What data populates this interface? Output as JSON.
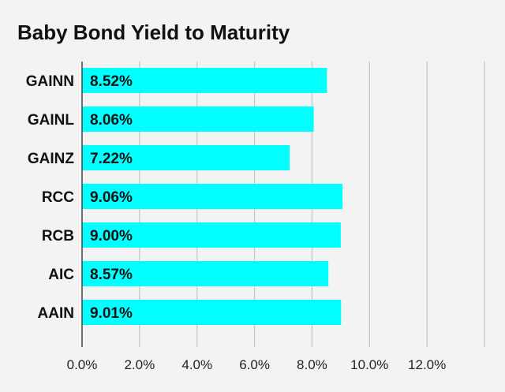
{
  "chart_data": {
    "type": "bar",
    "orientation": "horizontal",
    "title": "Baby Bond Yield to Maturity",
    "categories": [
      "GAINN",
      "GAINL",
      "GAINZ",
      "RCC",
      "RCB",
      "AIC",
      "AAIN"
    ],
    "values": [
      8.52,
      8.06,
      7.22,
      9.06,
      9.0,
      8.57,
      9.01
    ],
    "value_labels": [
      "8.52%",
      "8.06%",
      "7.22%",
      "9.06%",
      "9.00%",
      "8.57%",
      "9.01%"
    ],
    "xticks": [
      0,
      2,
      4,
      6,
      8,
      10,
      12
    ],
    "xtick_labels": [
      "0.0%",
      "2.0%",
      "4.0%",
      "6.0%",
      "8.0%",
      "10.0%",
      "12.0%"
    ],
    "xlim": [
      0,
      14
    ],
    "xlabel": "",
    "ylabel": "",
    "grid": "vertical",
    "legend": "none",
    "bar_color": "#00ffff",
    "grid_color": "#c4c4c4",
    "axis_color": "#444444",
    "background": "#f3f3f3"
  }
}
